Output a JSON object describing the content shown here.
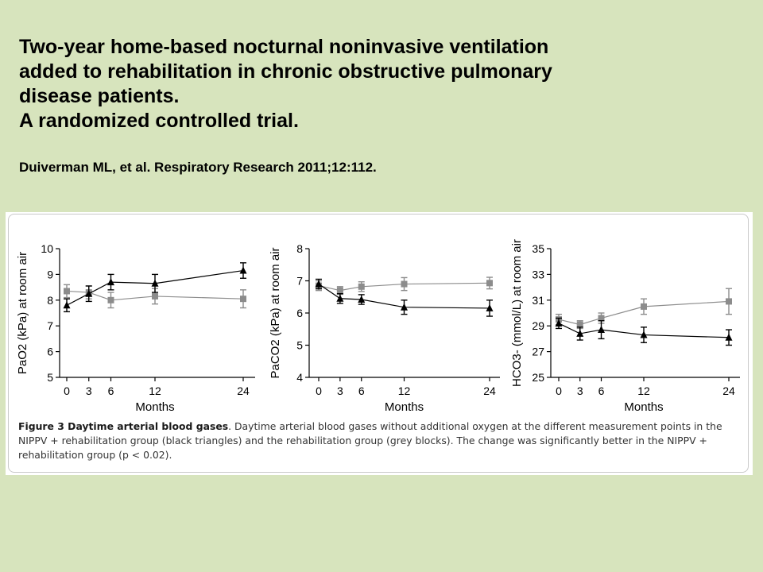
{
  "slide": {
    "title_lines": [
      "Two-year home-based nocturnal noninvasive ventilation",
      "added to rehabilitation in chronic obstructive pulmonary",
      "disease patients.",
      "A randomized controlled trial."
    ],
    "citation": "Duiverman ML, et al. Respiratory Research 2011;12:112."
  },
  "figure": {
    "caption_bold": "Figure 3 Daytime arterial blood gases",
    "caption_text": ". Daytime arterial blood gases without additional oxygen at the different measurement points in the NIPPV + rehabilitation group (black triangles) and the rehabilitation group (grey blocks). The change was significantly better in the NIPPV + rehabilitation group (p < 0.02)."
  },
  "colors": {
    "background": "#d7e4bd",
    "nippv_series": "#000000",
    "rehab_series": "#8c8c8c"
  },
  "chart_data": [
    {
      "type": "line",
      "ylabel": "PaO2 (kPa) at room air",
      "xlabel": "Months",
      "x": [
        0,
        3,
        6,
        12,
        24
      ],
      "ylim": [
        5,
        10
      ],
      "yticks": [
        5,
        6,
        7,
        8,
        9,
        10
      ],
      "series": [
        {
          "marker": "square",
          "color": "#8c8c8c",
          "values": [
            8.35,
            8.3,
            8.0,
            8.15,
            8.05
          ],
          "errors": [
            0.25,
            0.25,
            0.3,
            0.3,
            0.35
          ]
        },
        {
          "marker": "triangle",
          "color": "#000000",
          "values": [
            7.8,
            8.25,
            8.7,
            8.65,
            9.15
          ],
          "errors": [
            0.25,
            0.3,
            0.3,
            0.35,
            0.3
          ]
        }
      ]
    },
    {
      "type": "line",
      "ylabel": "PaCO2 (kPa) at room air",
      "xlabel": "Months",
      "x": [
        0,
        3,
        6,
        12,
        24
      ],
      "ylim": [
        4,
        8
      ],
      "yticks": [
        4,
        5,
        6,
        7,
        8
      ],
      "series": [
        {
          "marker": "square",
          "color": "#8c8c8c",
          "values": [
            6.85,
            6.7,
            6.82,
            6.9,
            6.93
          ],
          "errors": [
            0.15,
            0.12,
            0.15,
            0.2,
            0.18
          ]
        },
        {
          "marker": "triangle",
          "color": "#000000",
          "values": [
            6.9,
            6.45,
            6.42,
            6.18,
            6.15
          ],
          "errors": [
            0.15,
            0.15,
            0.15,
            0.22,
            0.25
          ]
        }
      ]
    },
    {
      "type": "line",
      "ylabel": "HCO3- (mmol/L) at room air",
      "xlabel": "Months",
      "x": [
        0,
        3,
        6,
        12,
        24
      ],
      "ylim": [
        25,
        35
      ],
      "yticks": [
        25,
        27,
        29,
        31,
        33,
        35
      ],
      "series": [
        {
          "marker": "square",
          "color": "#8c8c8c",
          "values": [
            29.5,
            29.1,
            29.6,
            30.5,
            30.9
          ],
          "errors": [
            0.4,
            0.3,
            0.4,
            0.6,
            1.0
          ]
        },
        {
          "marker": "triangle",
          "color": "#000000",
          "values": [
            29.2,
            28.4,
            28.7,
            28.3,
            28.1
          ],
          "errors": [
            0.4,
            0.5,
            0.7,
            0.6,
            0.6
          ]
        }
      ]
    }
  ]
}
